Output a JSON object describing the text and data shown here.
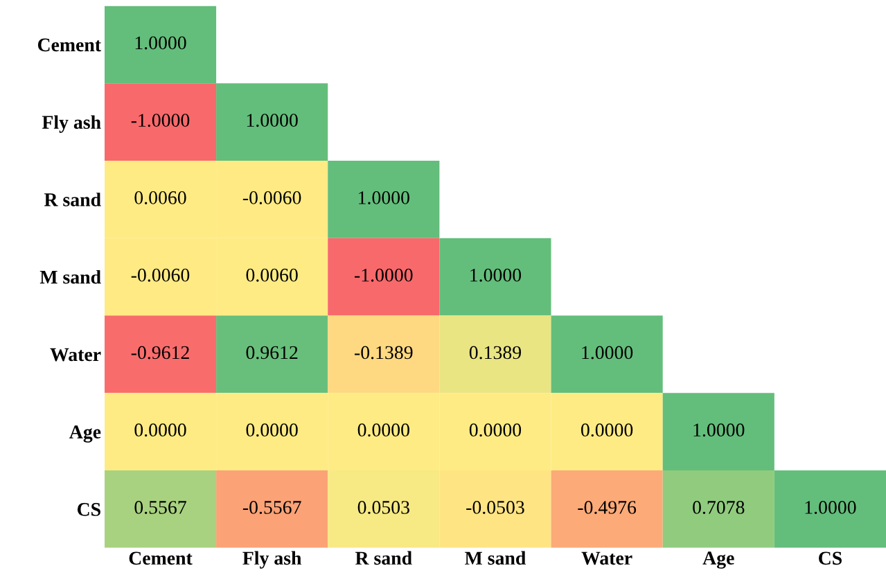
{
  "chart_data": {
    "type": "heatmap",
    "categories": [
      "Cement",
      "Fly ash",
      "R sand",
      "M sand",
      "Water",
      "Age",
      "CS"
    ],
    "y_categories": [
      "Cement",
      "Fly ash",
      "R sand",
      "M sand",
      "Water",
      "Age",
      "CS"
    ],
    "colors": [
      "#f8696b",
      "#ffeb84",
      "#63be7b"
    ],
    "cells": [
      [
        1.0,
        null,
        null,
        null,
        null,
        null,
        null
      ],
      [
        -1.0,
        1.0,
        null,
        null,
        null,
        null,
        null
      ],
      [
        0.006,
        -0.006,
        1.0,
        null,
        null,
        null,
        null
      ],
      [
        -0.006,
        0.006,
        -1.0,
        1.0,
        null,
        null,
        null
      ],
      [
        -0.9612,
        0.9612,
        -0.1389,
        0.1389,
        1.0,
        null,
        null
      ],
      [
        0.0,
        0.0,
        0.0,
        0.0,
        0.0,
        1.0,
        null
      ],
      [
        0.5567,
        -0.5567,
        0.0503,
        -0.0503,
        -0.4976,
        0.7078,
        1.0
      ]
    ],
    "cell_labels": [
      [
        "1.0000",
        null,
        null,
        null,
        null,
        null,
        null
      ],
      [
        "-1.0000",
        "1.0000",
        null,
        null,
        null,
        null,
        null
      ],
      [
        "0.0060",
        "-0.0060",
        "1.0000",
        null,
        null,
        null,
        null
      ],
      [
        "-0.0060",
        "0.0060",
        "-1.0000",
        "1.0000",
        null,
        null,
        null
      ],
      [
        "-0.9612",
        "0.9612",
        "-0.1389",
        "0.1389",
        "1.0000",
        null,
        null
      ],
      [
        "0.0000",
        "0.0000",
        "0.0000",
        "0.0000",
        "0.0000",
        "1.0000",
        null
      ],
      [
        "0.5567",
        "-0.5567",
        "0.0503",
        "-0.0503",
        "-0.4976",
        "0.7078",
        "1.0000"
      ]
    ]
  }
}
